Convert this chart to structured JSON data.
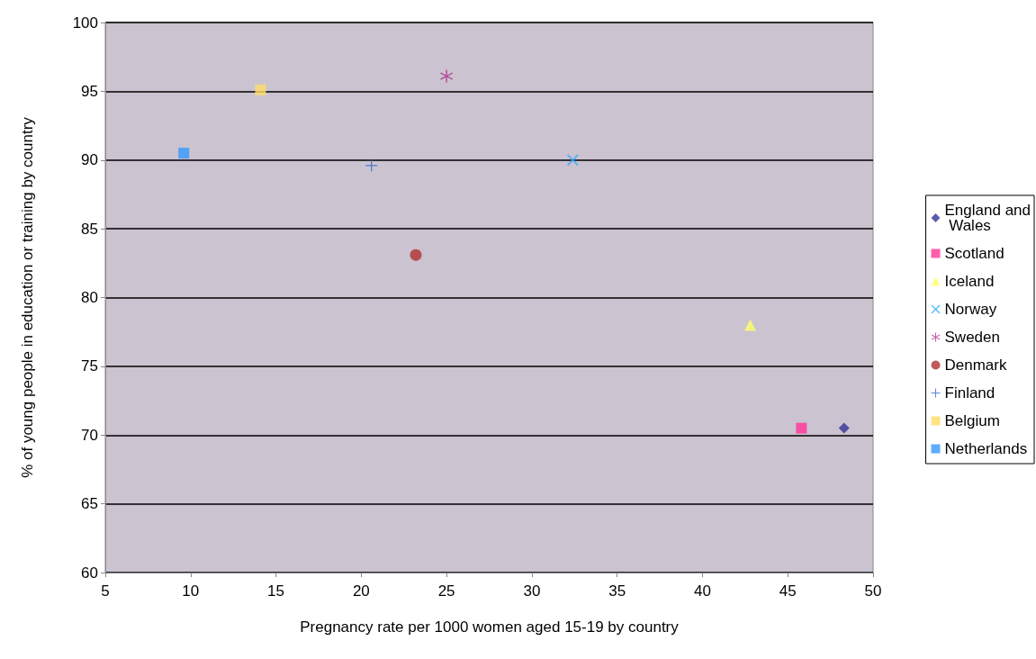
{
  "chart_data": {
    "type": "scatter",
    "xlabel": "Pregnancy rate per 1000 women aged 15-19 by country",
    "ylabel": "% of young people in education or training by country",
    "xlim": [
      5,
      50
    ],
    "xticks": [
      5,
      10,
      15,
      20,
      25,
      30,
      35,
      40,
      45,
      50
    ],
    "ylim": [
      60,
      100
    ],
    "yticks": [
      60,
      65,
      70,
      75,
      80,
      85,
      90,
      95,
      100
    ],
    "grid": "y",
    "legend": "right",
    "series": [
      {
        "name": "England and Wales",
        "color": "#333399",
        "marker": "diamond",
        "x": [
          48.3
        ],
        "values": [
          70.5
        ]
      },
      {
        "name": "Scotland",
        "color": "#ff3399",
        "marker": "square",
        "x": [
          45.8
        ],
        "values": [
          70.5
        ]
      },
      {
        "name": "Iceland",
        "color": "#ffff66",
        "marker": "triangle",
        "x": [
          42.8
        ],
        "values": [
          78.0
        ]
      },
      {
        "name": "Norway",
        "color": "#33aaff",
        "marker": "cross",
        "x": [
          32.4
        ],
        "values": [
          90.0
        ]
      },
      {
        "name": "Sweden",
        "color": "#b03090",
        "marker": "star",
        "x": [
          25.0
        ],
        "values": [
          96.1
        ]
      },
      {
        "name": "Denmark",
        "color": "#b03030",
        "marker": "circle",
        "x": [
          23.2
        ],
        "values": [
          83.1
        ]
      },
      {
        "name": "Finland",
        "color": "#3366cc",
        "marker": "plus",
        "x": [
          20.6
        ],
        "values": [
          89.6
        ]
      },
      {
        "name": "Belgium",
        "color": "#ffdd66",
        "marker": "square",
        "x": [
          14.1
        ],
        "values": [
          95.1
        ]
      },
      {
        "name": "Netherlands",
        "color": "#3399ff",
        "marker": "square",
        "x": [
          9.6
        ],
        "values": [
          90.5
        ]
      }
    ]
  }
}
